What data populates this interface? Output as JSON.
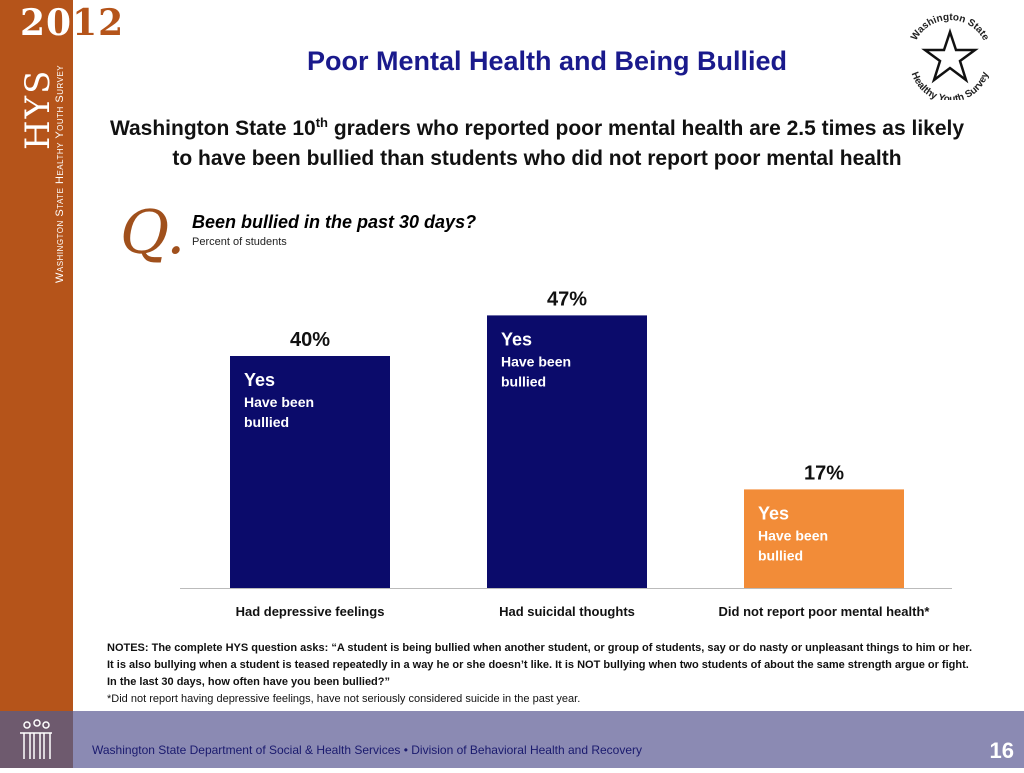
{
  "sidebar": {
    "year_prefix": "20",
    "year_suffix": "12",
    "brand": "HYS",
    "survey_name": "Washington State Healthy Youth Survey"
  },
  "header": {
    "title": "Poor Mental Health and Being Bullied",
    "subtitle_pre": "Washington State 10",
    "subtitle_sup": "th",
    "subtitle_post": " graders who reported poor mental health are 2.5 times as likely to have been bullied than students who did not report poor mental health"
  },
  "logo": {
    "top": "Washington State",
    "bottom": "Healthy Youth Survey"
  },
  "question": {
    "mark": "Q.",
    "text": "Been bullied in the past 30 days?",
    "unit": "Percent of students"
  },
  "chart_data": {
    "type": "bar",
    "title": "Been bullied in the past 30 days?",
    "ylabel": "Percent of students",
    "ylim": [
      0,
      50
    ],
    "categories": [
      "Had depressive feelings",
      "Had suicidal thoughts",
      "Did not report poor mental health*"
    ],
    "values": [
      40,
      47,
      17
    ],
    "data_labels": [
      "40%",
      "47%",
      "17%"
    ],
    "bar_labels": [
      {
        "main": "Yes",
        "sub1": "Have been",
        "sub2": "bullied"
      },
      {
        "main": "Yes",
        "sub1": "Have been",
        "sub2": "bullied"
      },
      {
        "main": "Yes",
        "sub1": "Have been",
        "sub2": "bullied"
      }
    ],
    "colors": [
      "#0b0b6b",
      "#0b0b6b",
      "#f28c38"
    ]
  },
  "notes": {
    "bold": "NOTES: The complete HYS question asks: “A student is being bullied when another student, or group of students, say or do nasty or unpleasant things to him or her. It is also bullying when a student is teased repeatedly in a way he or she doesn’t like. It is NOT bullying when two students of about the same strength argue or fight. In the last 30 days, how often have you been bullied?”",
    "footnote": "*Did not report having depressive feelings, have not seriously considered suicide in the past year."
  },
  "footer": {
    "text": "Washington State Department of Social & Health Services • Division of Behavioral Health and Recovery",
    "page": "16"
  }
}
